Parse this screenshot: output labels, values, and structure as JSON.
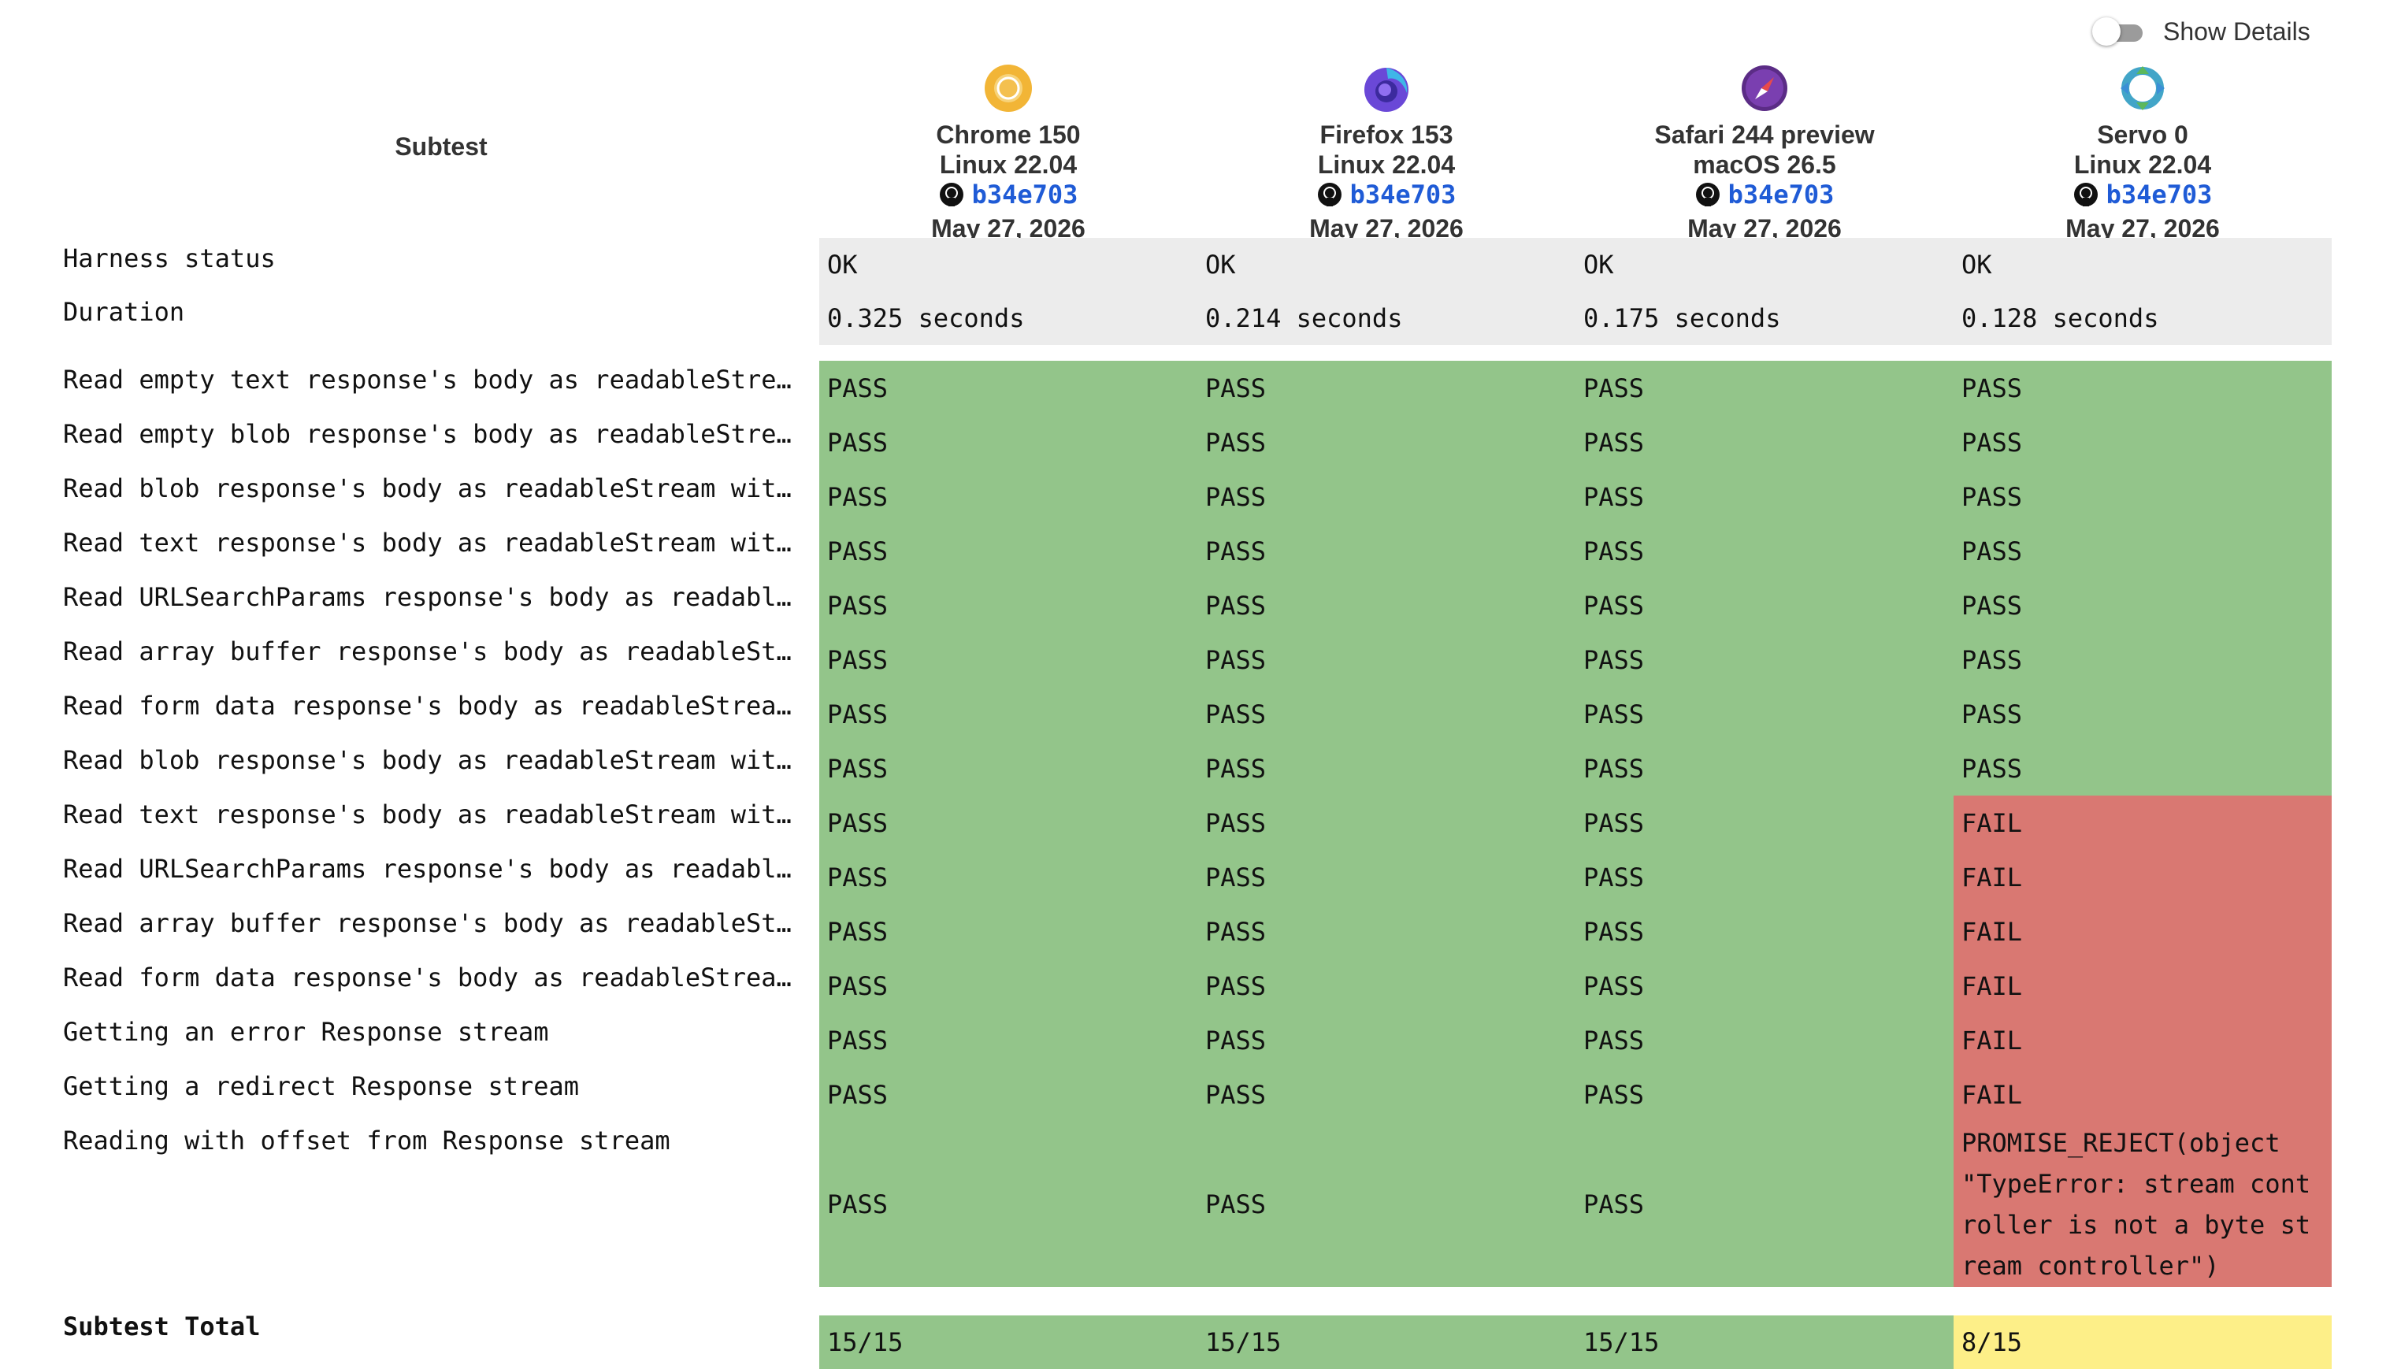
{
  "toggle": {
    "label": "Show Details",
    "on": false
  },
  "header": {
    "subtest": "Subtest"
  },
  "browsers": [
    {
      "name": "Chrome 150",
      "os": "Linux 22.04",
      "revision": "b34e703",
      "date": "May 27, 2026",
      "icon": "chrome-icon"
    },
    {
      "name": "Firefox 153",
      "os": "Linux 22.04",
      "revision": "b34e703",
      "date": "May 27, 2026",
      "icon": "firefox-icon"
    },
    {
      "name": "Safari 244 preview",
      "os": "macOS 26.5",
      "revision": "b34e703",
      "date": "May 27, 2026",
      "icon": "safari-icon"
    },
    {
      "name": "Servo 0",
      "os": "Linux 22.04",
      "revision": "b34e703",
      "date": "May 27, 2026",
      "icon": "servo-icon"
    }
  ],
  "harness": {
    "status_label": "Harness status",
    "status": [
      "OK",
      "OK",
      "OK",
      "OK"
    ],
    "duration_label": "Duration",
    "duration": [
      "0.325 seconds",
      "0.214 seconds",
      "0.175 seconds",
      "0.128 seconds"
    ]
  },
  "subtests": [
    {
      "name": "Read empty text response's body as readableStre…",
      "results": [
        "PASS",
        "PASS",
        "PASS",
        "PASS"
      ]
    },
    {
      "name": "Read empty blob response's body as readableStre…",
      "results": [
        "PASS",
        "PASS",
        "PASS",
        "PASS"
      ]
    },
    {
      "name": "Read blob response's body as readableStream wit…",
      "results": [
        "PASS",
        "PASS",
        "PASS",
        "PASS"
      ]
    },
    {
      "name": "Read text response's body as readableStream wit…",
      "results": [
        "PASS",
        "PASS",
        "PASS",
        "PASS"
      ]
    },
    {
      "name": "Read URLSearchParams response's body as readabl…",
      "results": [
        "PASS",
        "PASS",
        "PASS",
        "PASS"
      ]
    },
    {
      "name": "Read array buffer response's body as readableSt…",
      "results": [
        "PASS",
        "PASS",
        "PASS",
        "PASS"
      ]
    },
    {
      "name": "Read form data response's body as readableStrea…",
      "results": [
        "PASS",
        "PASS",
        "PASS",
        "PASS"
      ]
    },
    {
      "name": "Read blob response's body as readableStream wit…",
      "results": [
        "PASS",
        "PASS",
        "PASS",
        "PASS"
      ]
    },
    {
      "name": "Read text response's body as readableStream wit…",
      "results": [
        "PASS",
        "PASS",
        "PASS",
        "FAIL"
      ]
    },
    {
      "name": "Read URLSearchParams response's body as readabl…",
      "results": [
        "PASS",
        "PASS",
        "PASS",
        "FAIL"
      ]
    },
    {
      "name": "Read array buffer response's body as readableSt…",
      "results": [
        "PASS",
        "PASS",
        "PASS",
        "FAIL"
      ]
    },
    {
      "name": "Read form data response's body as readableStrea…",
      "results": [
        "PASS",
        "PASS",
        "PASS",
        "FAIL"
      ]
    },
    {
      "name": "Getting an error Response stream",
      "results": [
        "PASS",
        "PASS",
        "PASS",
        "FAIL"
      ]
    },
    {
      "name": "Getting a redirect Response stream",
      "results": [
        "PASS",
        "PASS",
        "PASS",
        "FAIL"
      ]
    },
    {
      "name": "Reading with offset from Response stream",
      "results": [
        "PASS",
        "PASS",
        "PASS",
        "PROMISE_REJECT(object \"TypeError: stream controller is not a byte stream controller\")"
      ],
      "wrapped_last": [
        "PROMISE_REJECT(object",
        "\"TypeError: stream cont",
        "roller is not a byte st",
        "ream controller\")"
      ]
    }
  ],
  "total": {
    "label": "Subtest Total",
    "values": [
      "15/15",
      "15/15",
      "15/15",
      "8/15"
    ]
  },
  "colors": {
    "pass": "#93c58a",
    "fail": "#d97872",
    "partial": "#fdef88",
    "meta": "#ececec",
    "link": "#1f5bd6"
  }
}
